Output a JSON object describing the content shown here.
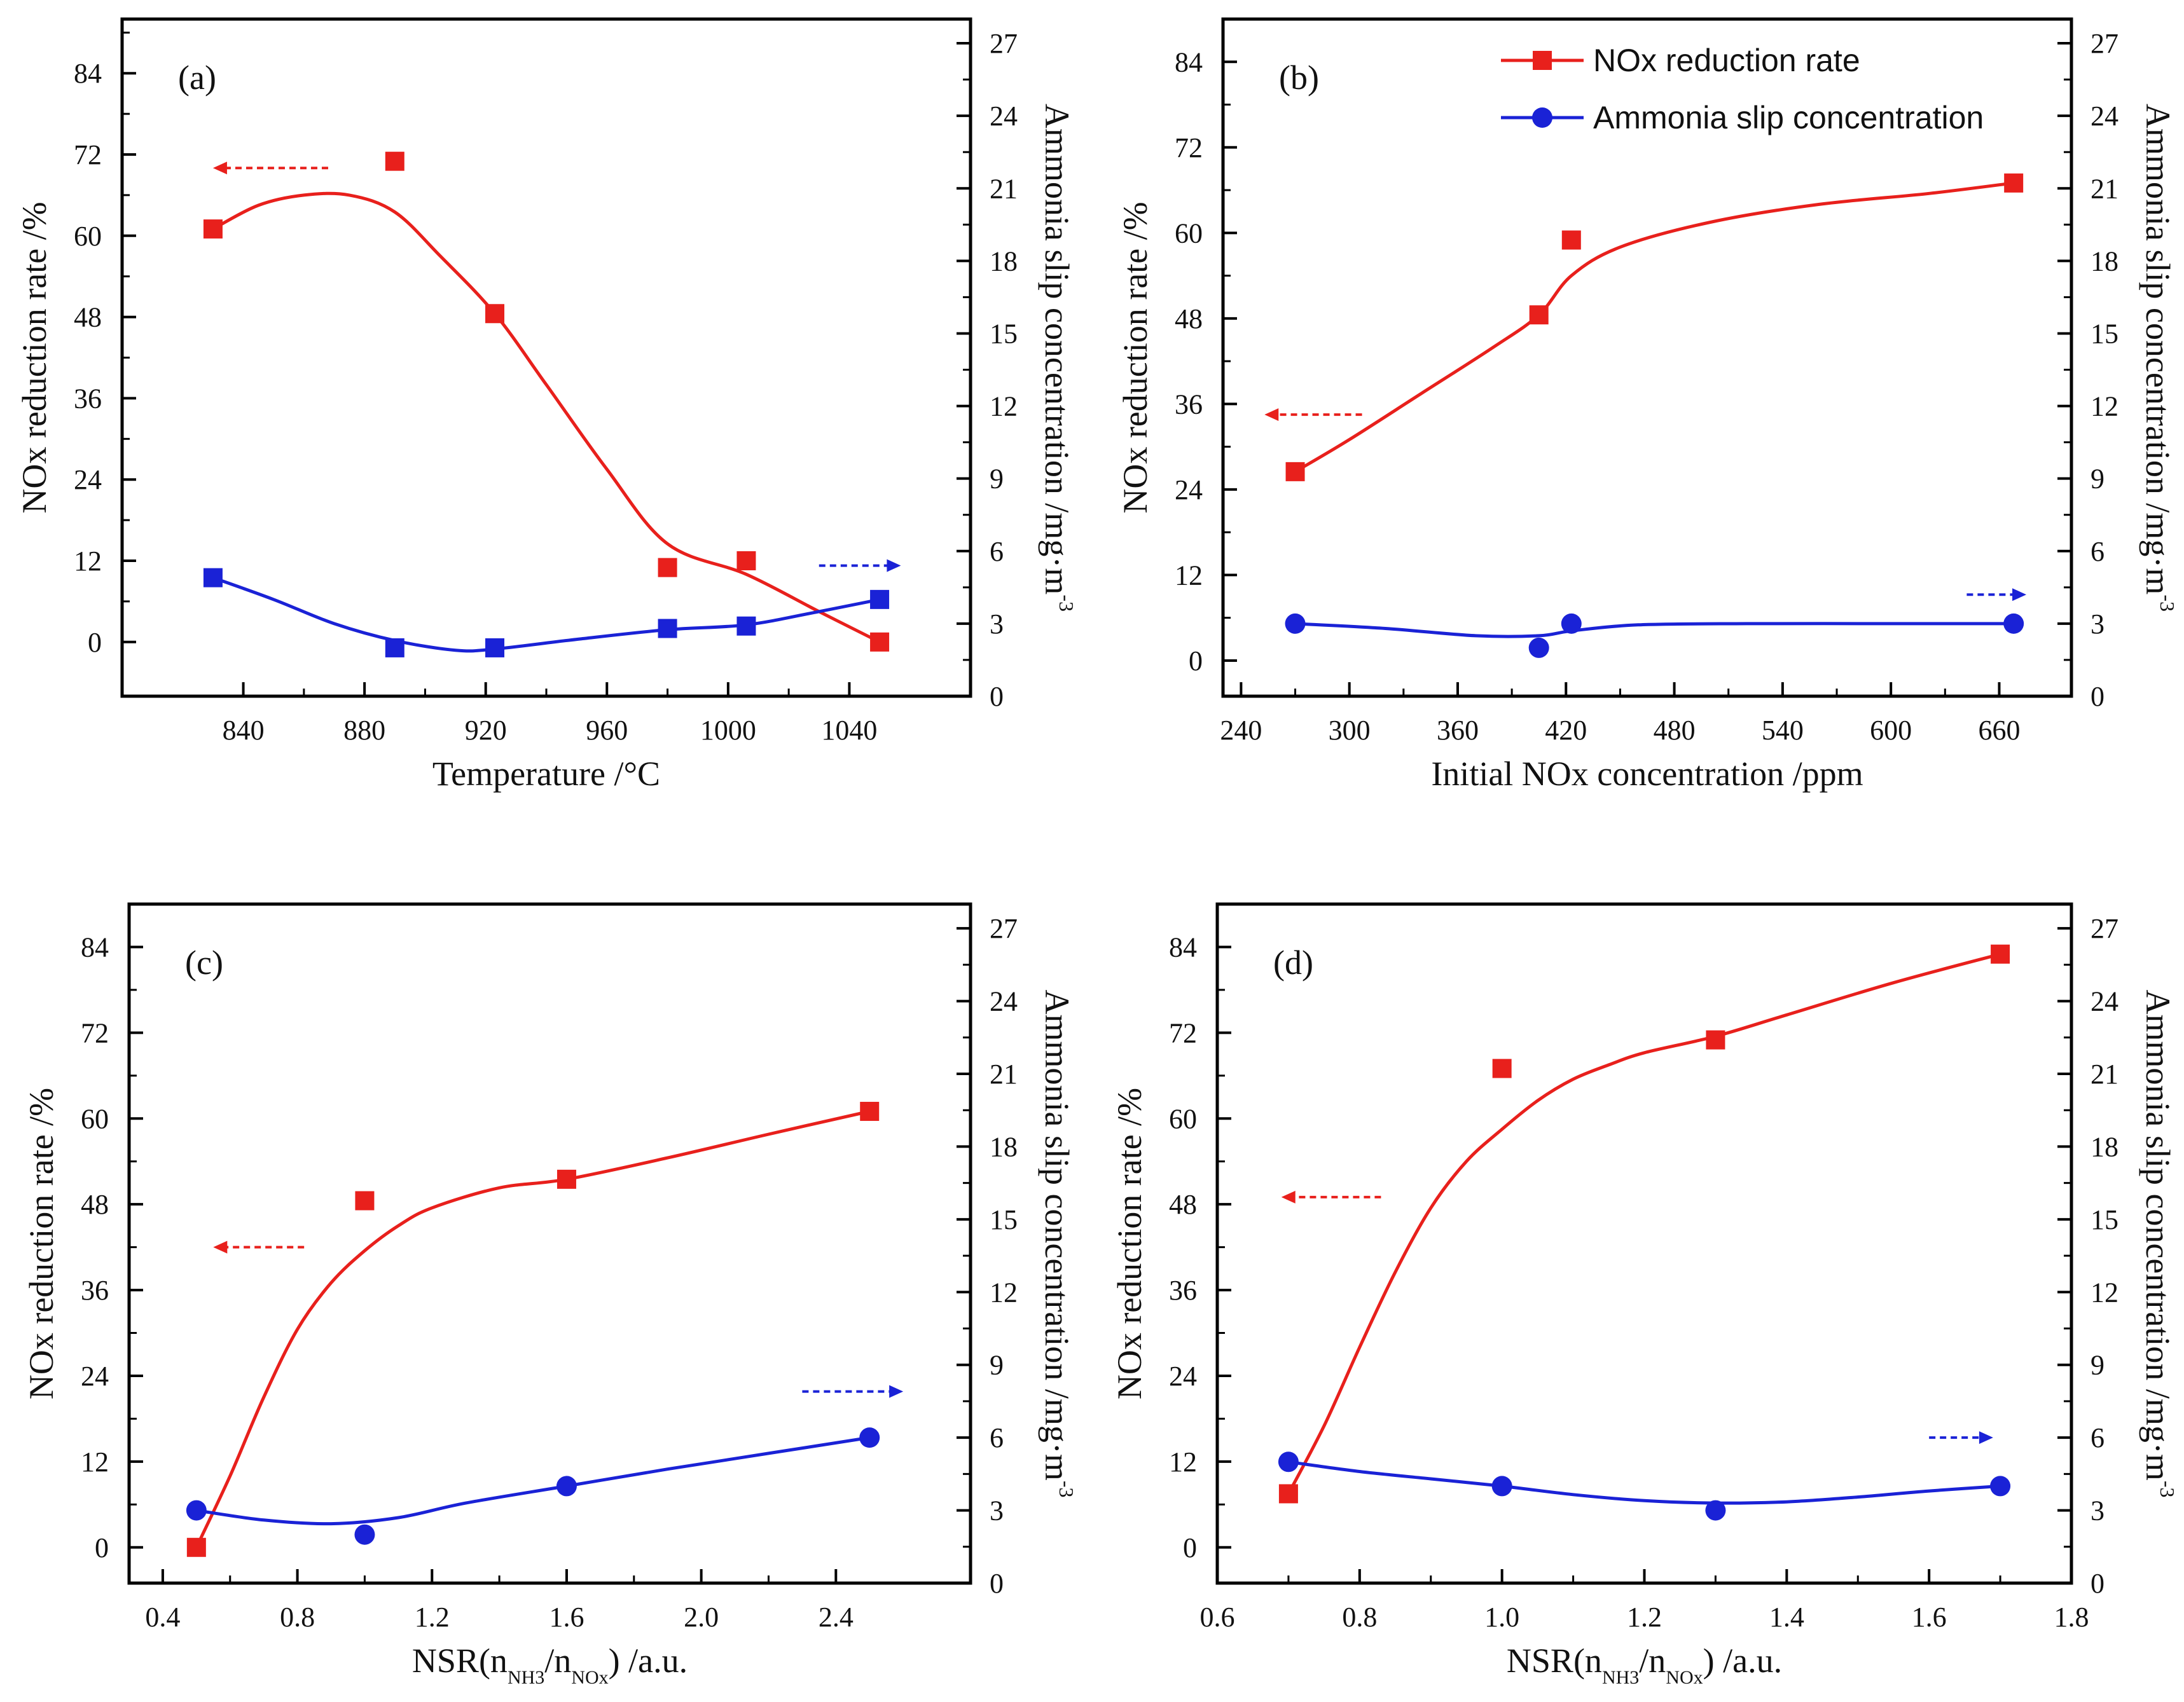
{
  "figure": {
    "legend": {
      "panel": 1,
      "items": [
        {
          "label": "NOx reduction rate",
          "color": "#e8201c",
          "marker": "square"
        },
        {
          "label": "Ammonia slip concentration",
          "color": "#1a22d6",
          "marker": "circle"
        }
      ]
    }
  },
  "chart_data": [
    {
      "type": "line",
      "panel_label": "(a)",
      "xlabel": "Temperature /°C",
      "xlabel_sub": null,
      "ylabel": "NOx reduction rate /%",
      "y2label": "Ammonia slip concentration /mg·m",
      "y2label_sup": "-3",
      "xlim": [
        800,
        1080
      ],
      "xticks": [
        840,
        880,
        920,
        960,
        1000,
        1040
      ],
      "xtick_labels": [
        "840",
        "880",
        "920",
        "960",
        "1000",
        "1040"
      ],
      "ylim": [
        -8,
        92
      ],
      "yticks": [
        0,
        12,
        24,
        36,
        48,
        60,
        72,
        84
      ],
      "y2lim": [
        0,
        28
      ],
      "y2ticks": [
        0,
        3,
        6,
        9,
        12,
        15,
        18,
        21,
        24,
        27
      ],
      "series": [
        {
          "name": "NOx reduction rate",
          "axis": "left",
          "color": "#e8201c",
          "marker": "square",
          "x": [
            830,
            890,
            923,
            980,
            1006,
            1050
          ],
          "y": [
            61,
            71,
            48.5,
            11,
            12,
            0
          ],
          "curve_x": [
            830,
            845,
            860,
            875,
            890,
            905,
            923,
            940,
            960,
            980,
            1006,
            1030,
            1050
          ],
          "curve_y": [
            61,
            64.5,
            66,
            66,
            63.5,
            57,
            48.5,
            38,
            25.5,
            14.5,
            10,
            4.5,
            0
          ]
        },
        {
          "name": "Ammonia slip concentration",
          "axis": "right",
          "color": "#1a22d6",
          "marker": "square",
          "x": [
            830,
            890,
            923,
            980,
            1006,
            1050
          ],
          "y": [
            4.9,
            2.0,
            2.0,
            2.8,
            2.9,
            4.0
          ],
          "curve_x": [
            830,
            850,
            870,
            890,
            910,
            923,
            950,
            980,
            1006,
            1030,
            1050
          ],
          "curve_y": [
            4.9,
            4.0,
            3.0,
            2.3,
            1.9,
            1.95,
            2.35,
            2.75,
            2.95,
            3.5,
            4.0
          ]
        }
      ],
      "arrows": [
        {
          "axis": "left",
          "direction": "left",
          "color": "#e8201c",
          "x1": 868,
          "x2": 830,
          "y": 70
        },
        {
          "axis": "right",
          "direction": "right",
          "color": "#1a22d6",
          "x1": 1030,
          "x2": 1057,
          "y": 5.4
        }
      ]
    },
    {
      "type": "line",
      "panel_label": "(b)",
      "xlabel": "Initial NOx concentration /ppm",
      "xlabel_sub": null,
      "ylabel": "NOx reduction rate /%",
      "y2label": "Ammonia slip concentration /mg·m",
      "y2label_sup": "-3",
      "xlim": [
        230,
        700
      ],
      "xticks": [
        240,
        300,
        360,
        420,
        480,
        540,
        600,
        660
      ],
      "xtick_labels": [
        "240",
        "300",
        "360",
        "420",
        "480",
        "540",
        "600",
        "660"
      ],
      "ylim": [
        -5,
        90
      ],
      "yticks": [
        0,
        12,
        24,
        36,
        48,
        60,
        72,
        84
      ],
      "y2lim": [
        0,
        28
      ],
      "y2ticks": [
        0,
        3,
        6,
        9,
        12,
        15,
        18,
        21,
        24,
        27
      ],
      "series": [
        {
          "name": "NOx reduction rate",
          "axis": "left",
          "color": "#e8201c",
          "marker": "square",
          "x": [
            270,
            405,
            423,
            668
          ],
          "y": [
            26.5,
            48.5,
            59,
            67
          ],
          "curve_x": [
            270,
            300,
            340,
            380,
            405,
            423,
            450,
            500,
            560,
            620,
            668
          ],
          "curve_y": [
            26.5,
            31,
            37.5,
            44,
            48.5,
            54,
            58,
            61.5,
            64,
            65.5,
            67
          ]
        },
        {
          "name": "Ammonia slip concentration",
          "axis": "right",
          "color": "#1a22d6",
          "marker": "circle",
          "x": [
            270,
            405,
            423,
            668
          ],
          "y": [
            3.0,
            2.0,
            3.0,
            3.0
          ],
          "curve_x": [
            270,
            320,
            370,
            405,
            423,
            460,
            520,
            600,
            668
          ],
          "curve_y": [
            3.0,
            2.8,
            2.5,
            2.5,
            2.7,
            2.95,
            3.0,
            3.0,
            3.0
          ]
        }
      ],
      "arrows": [
        {
          "axis": "left",
          "direction": "left",
          "color": "#e8201c",
          "x1": 307,
          "x2": 253,
          "y": 34.5
        },
        {
          "axis": "right",
          "direction": "right",
          "color": "#1a22d6",
          "x1": 642,
          "x2": 675,
          "y": 4.2
        }
      ]
    },
    {
      "type": "line",
      "panel_label": "(c)",
      "xlabel": "NSR(n",
      "xlabel_sub": [
        "NH3",
        "/n",
        "NOx",
        ") /a.u."
      ],
      "ylabel": "NOx reduction rate /%",
      "y2label": "Ammonia slip concentration /mg·m",
      "y2label_sup": "-3",
      "xlim": [
        0.3,
        2.8
      ],
      "xticks": [
        0.4,
        0.8,
        1.2,
        1.6,
        2.0,
        2.4
      ],
      "xtick_labels": [
        "0.4",
        "0.8",
        "1.2",
        "1.6",
        "2.0",
        "2.4"
      ],
      "ylim": [
        -5,
        90
      ],
      "yticks": [
        0,
        12,
        24,
        36,
        48,
        60,
        72,
        84
      ],
      "y2lim": [
        0,
        28
      ],
      "y2ticks": [
        0,
        3,
        6,
        9,
        12,
        15,
        18,
        21,
        24,
        27
      ],
      "series": [
        {
          "name": "NOx reduction rate",
          "axis": "left",
          "color": "#e8201c",
          "marker": "square",
          "x": [
            0.5,
            1.0,
            1.6,
            2.5
          ],
          "y": [
            0,
            48.5,
            51.5,
            61
          ],
          "curve_x": [
            0.5,
            0.6,
            0.7,
            0.8,
            0.9,
            1.0,
            1.1,
            1.2,
            1.4,
            1.6,
            1.9,
            2.2,
            2.5
          ],
          "curve_y": [
            0,
            10,
            21,
            30.5,
            37,
            41.5,
            45,
            47.5,
            50.3,
            51.5,
            54.5,
            57.8,
            61
          ]
        },
        {
          "name": "Ammonia slip concentration",
          "axis": "right",
          "color": "#1a22d6",
          "marker": "circle",
          "x": [
            0.5,
            1.0,
            1.6,
            2.5
          ],
          "y": [
            3.0,
            2.0,
            4.0,
            6.0
          ],
          "curve_x": [
            0.5,
            0.7,
            0.9,
            1.1,
            1.3,
            1.6,
            1.9,
            2.2,
            2.5
          ],
          "curve_y": [
            3.0,
            2.6,
            2.45,
            2.7,
            3.3,
            4.0,
            4.7,
            5.35,
            6.0
          ]
        }
      ],
      "arrows": [
        {
          "axis": "left",
          "direction": "left",
          "color": "#e8201c",
          "x1": 0.82,
          "x2": 0.55,
          "y": 42
        },
        {
          "axis": "right",
          "direction": "right",
          "color": "#1a22d6",
          "x1": 2.3,
          "x2": 2.6,
          "y": 7.9
        }
      ]
    },
    {
      "type": "line",
      "panel_label": "(d)",
      "xlabel": "NSR(n",
      "xlabel_sub": [
        "NH3",
        "/n",
        "NOx",
        ") /a.u."
      ],
      "ylabel": "NOx reduction rate /%",
      "y2label": "Ammonia slip concentration /mg·m",
      "y2label_sup": "-3",
      "xlim": [
        0.6,
        1.8
      ],
      "xticks": [
        0.6,
        0.8,
        1.0,
        1.2,
        1.4,
        1.6,
        1.8
      ],
      "xtick_labels": [
        "0.6",
        "0.8",
        "1.0",
        "1.2",
        "1.4",
        "1.6",
        "1.8"
      ],
      "ylim": [
        -5,
        90
      ],
      "yticks": [
        0,
        12,
        24,
        36,
        48,
        60,
        72,
        84
      ],
      "y2lim": [
        0,
        28
      ],
      "y2ticks": [
        0,
        3,
        6,
        9,
        12,
        15,
        18,
        21,
        24,
        27
      ],
      "series": [
        {
          "name": "NOx reduction rate",
          "axis": "left",
          "color": "#e8201c",
          "marker": "square",
          "x": [
            0.7,
            1.0,
            1.3,
            1.7
          ],
          "y": [
            7.5,
            67,
            71,
            83
          ],
          "curve_x": [
            0.7,
            0.75,
            0.8,
            0.85,
            0.9,
            0.95,
            1.0,
            1.05,
            1.1,
            1.15,
            1.2,
            1.3,
            1.4,
            1.55,
            1.7
          ],
          "curve_y": [
            7.5,
            17,
            28,
            38.5,
            47.5,
            54,
            58.5,
            62.5,
            65.5,
            67.5,
            69.2,
            71.5,
            74.5,
            79,
            83
          ]
        },
        {
          "name": "Ammonia slip concentration",
          "axis": "right",
          "color": "#1a22d6",
          "marker": "circle",
          "x": [
            0.7,
            1.0,
            1.3,
            1.7
          ],
          "y": [
            5.0,
            4.0,
            3.0,
            4.0
          ],
          "curve_x": [
            0.7,
            0.8,
            0.9,
            1.0,
            1.1,
            1.2,
            1.3,
            1.4,
            1.5,
            1.6,
            1.7
          ],
          "curve_y": [
            5.0,
            4.6,
            4.3,
            4.0,
            3.65,
            3.4,
            3.3,
            3.35,
            3.55,
            3.8,
            4.0
          ]
        }
      ],
      "arrows": [
        {
          "axis": "left",
          "direction": "left",
          "color": "#e8201c",
          "x1": 0.83,
          "x2": 0.69,
          "y": 49
        },
        {
          "axis": "right",
          "direction": "right",
          "color": "#1a22d6",
          "x1": 1.6,
          "x2": 1.69,
          "y": 6.0
        }
      ]
    }
  ]
}
